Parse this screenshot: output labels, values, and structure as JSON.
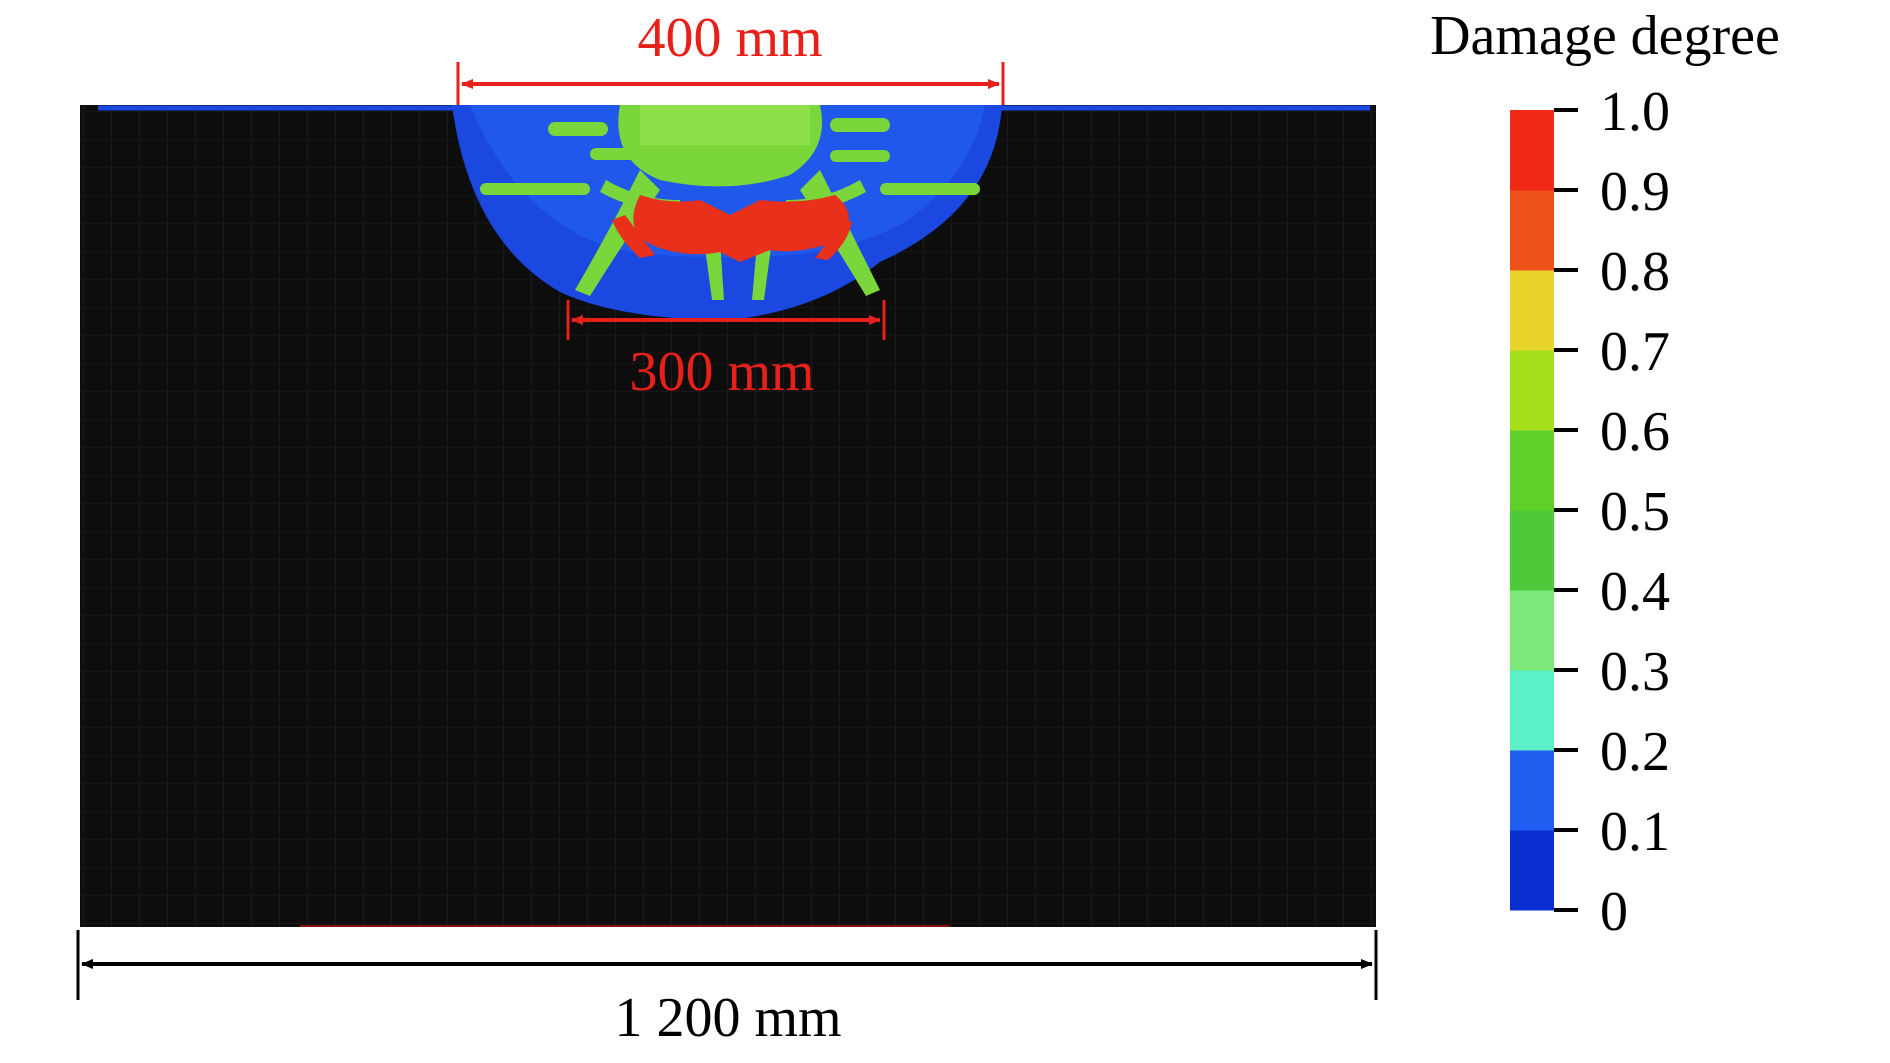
{
  "dimensions": {
    "top_width": "400 mm",
    "bottom_width": "300 mm",
    "total_width": "1 200 mm"
  },
  "legend": {
    "title": "Damage degree",
    "ticks": [
      "1.0",
      "0.9",
      "0.8",
      "0.7",
      "0.6",
      "0.5",
      "0.4",
      "0.3",
      "0.2",
      "0.1",
      "0"
    ],
    "colors": [
      "#0a2fd0",
      "#1f5ef0",
      "#5cf0c8",
      "#7ee87a",
      "#4ec93a",
      "#5fd028",
      "#a6e01c",
      "#e8d42a",
      "#f0501a",
      "#f02a16"
    ]
  },
  "colors": {
    "dimension_red": "#e8201a",
    "dimension_black": "#000000",
    "specimen": "#0d0d0d",
    "damage_blue": "#1a48e0",
    "damage_green": "#7ad63a",
    "damage_red": "#e8301a"
  }
}
